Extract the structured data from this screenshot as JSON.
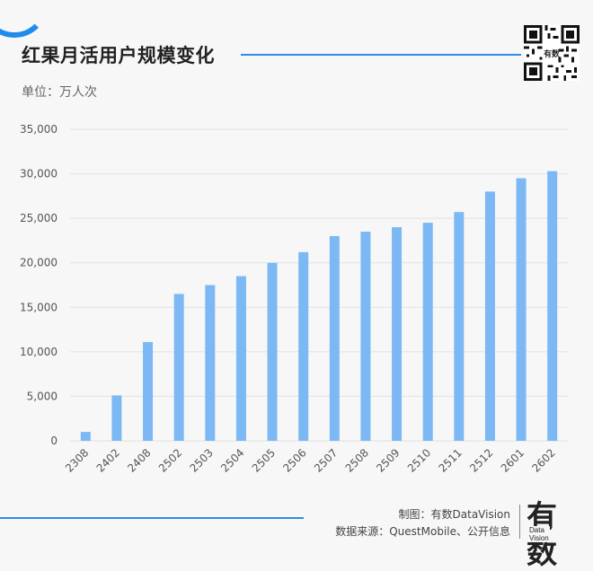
{
  "title": "红果月活用户规模变化",
  "unit_label": "单位：万人次",
  "credit_made_by": "制图：有数DataVision",
  "credit_source": "数据来源：QuestMobile、公开信息",
  "logo": {
    "main": "有数",
    "sub_line1": "Data",
    "sub_line2": "Vision"
  },
  "colors": {
    "bar": "#7cb9f4",
    "accent": "#2f8be6",
    "grid": "#e2e2e2"
  },
  "chart_data": {
    "type": "bar",
    "categories": [
      "2308",
      "2402",
      "2408",
      "2502",
      "2503",
      "2504",
      "2505",
      "2506",
      "2507",
      "2508",
      "2509",
      "2510",
      "2511",
      "2512",
      "2601",
      "2602"
    ],
    "values": [
      1000,
      5100,
      11100,
      16500,
      17500,
      18500,
      20000,
      21200,
      23000,
      23500,
      24000,
      24500,
      25700,
      28000,
      29500,
      30300
    ],
    "yticks": [
      "0",
      "5,000",
      "10,000",
      "15,000",
      "20,000",
      "25,000",
      "30,000",
      "35,000"
    ],
    "ylim": [
      0,
      35000
    ],
    "grid": true
  }
}
